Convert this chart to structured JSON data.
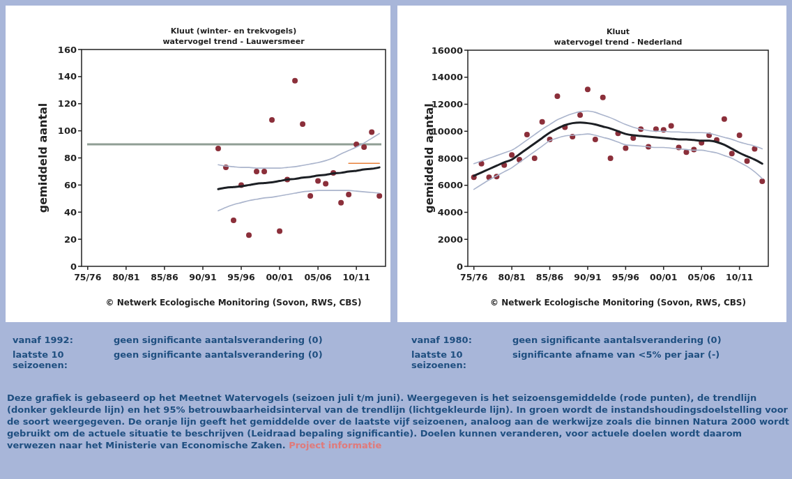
{
  "chart_data": [
    {
      "type": "scatter",
      "title": "Kluut (winter- en trekvogels)",
      "subtitle": "watervogel trend - Lauwersmeer",
      "ylabel": "gemiddeld aantal",
      "categories": [
        "75/76",
        null,
        null,
        null,
        null,
        "80/81",
        null,
        null,
        null,
        null,
        "85/86",
        null,
        null,
        null,
        null,
        "90/91",
        null,
        null,
        null,
        null,
        "95/96",
        null,
        null,
        null,
        null,
        "00/01",
        null,
        null,
        null,
        null,
        "05/06",
        null,
        null,
        null,
        null,
        "10/11",
        null,
        null,
        null
      ],
      "ylim": [
        0,
        160
      ],
      "yticks": [
        0,
        20,
        40,
        60,
        80,
        100,
        120,
        140,
        160
      ],
      "ref_lines": [
        {
          "axis": "y",
          "value": 90,
          "color": "#8f9e94"
        }
      ],
      "series": [
        {
          "type": "scatter",
          "marker": "circle",
          "color": "#8b2f3a",
          "values": [
            null,
            null,
            null,
            null,
            null,
            null,
            null,
            null,
            null,
            null,
            null,
            null,
            null,
            null,
            null,
            null,
            null,
            87,
            73,
            34,
            60,
            23,
            70,
            70,
            108,
            26,
            64,
            137,
            105,
            52,
            63,
            61,
            69,
            47,
            53,
            90,
            88,
            99,
            52
          ]
        },
        {
          "type": "line",
          "color": "#aab4cc",
          "values": [
            null,
            null,
            null,
            null,
            null,
            null,
            null,
            null,
            null,
            null,
            null,
            null,
            null,
            null,
            null,
            null,
            null,
            75,
            74,
            73.5,
            73,
            73,
            72.5,
            72.5,
            72.5,
            72.5,
            73,
            73.5,
            74.5,
            75.5,
            76.5,
            78,
            80,
            83,
            85.5,
            88,
            91,
            94.5,
            98
          ]
        },
        {
          "type": "line",
          "color": "#aab4cc",
          "values": [
            null,
            null,
            null,
            null,
            null,
            null,
            null,
            null,
            null,
            null,
            null,
            null,
            null,
            null,
            null,
            null,
            null,
            41,
            43.5,
            45.5,
            47,
            48.5,
            49.5,
            50.5,
            51,
            52,
            53,
            54,
            55,
            55.5,
            56,
            56,
            56,
            56,
            56,
            55.5,
            55,
            54.5,
            54
          ]
        },
        {
          "type": "line",
          "color": "#1c1f24",
          "values": [
            null,
            null,
            null,
            null,
            null,
            null,
            null,
            null,
            null,
            null,
            null,
            null,
            null,
            null,
            null,
            null,
            null,
            57,
            58,
            58.5,
            59,
            60,
            61,
            61.5,
            62,
            63,
            64,
            64.5,
            65.5,
            66,
            67,
            67.5,
            68.5,
            69,
            70,
            70.5,
            71.5,
            72,
            73
          ]
        },
        {
          "type": "line",
          "color": "#e8803a",
          "values": [
            null,
            null,
            null,
            null,
            null,
            null,
            null,
            null,
            null,
            null,
            null,
            null,
            null,
            null,
            null,
            null,
            null,
            null,
            null,
            null,
            null,
            null,
            null,
            null,
            null,
            null,
            null,
            null,
            null,
            null,
            null,
            null,
            null,
            null,
            76,
            76,
            76,
            76,
            76
          ]
        }
      ],
      "annotations": [
        "© Netwerk Ecologische Monitoring (Sovon, RWS, CBS)",
        "vanaf 1992:",
        "geen significante aantalsverandering (0)",
        "laatste 10 seizoenen:",
        "geen significante aantalsverandering (0)"
      ]
    },
    {
      "type": "scatter",
      "title": "Kluut",
      "subtitle": "watervogel trend - Nederland",
      "ylabel": "gemiddeld aantal",
      "categories": [
        "75/76",
        null,
        null,
        null,
        null,
        "80/81",
        null,
        null,
        null,
        null,
        "85/86",
        null,
        null,
        null,
        null,
        "90/91",
        null,
        null,
        null,
        null,
        "95/96",
        null,
        null,
        null,
        null,
        "00/01",
        null,
        null,
        null,
        null,
        "05/06",
        null,
        null,
        null,
        null,
        "10/11",
        null,
        null,
        null
      ],
      "ylim": [
        0,
        16000
      ],
      "yticks": [
        0,
        2000,
        4000,
        6000,
        8000,
        10000,
        12000,
        14000,
        16000
      ],
      "series": [
        {
          "type": "scatter",
          "marker": "circle",
          "color": "#8b2f3a",
          "values": [
            6600,
            7600,
            6600,
            6650,
            7500,
            8250,
            7900,
            9750,
            8000,
            10700,
            9400,
            12600,
            10300,
            9600,
            11200,
            13100,
            9400,
            12500,
            8000,
            9850,
            8750,
            9500,
            10150,
            8850,
            10150,
            10100,
            10400,
            8800,
            8450,
            8650,
            9150,
            9700,
            9350,
            10900,
            8350,
            9700,
            7800,
            8700,
            6300
          ]
        },
        {
          "type": "line",
          "color": "#aab4cc",
          "values": [
            7600,
            7800,
            8000,
            8200,
            8400,
            8600,
            8950,
            9350,
            9750,
            10150,
            10500,
            10850,
            11100,
            11300,
            11450,
            11500,
            11400,
            11200,
            11000,
            10750,
            10500,
            10300,
            10150,
            10050,
            10000,
            10000,
            9950,
            9950,
            9900,
            9900,
            9900,
            9850,
            9700,
            9550,
            9400,
            9200,
            9050,
            8900,
            8700
          ]
        },
        {
          "type": "line",
          "color": "#aab4cc",
          "values": [
            5700,
            6050,
            6400,
            6700,
            7000,
            7300,
            7700,
            8100,
            8500,
            8900,
            9300,
            9500,
            9650,
            9700,
            9750,
            9800,
            9700,
            9550,
            9400,
            9200,
            9000,
            8950,
            8900,
            8850,
            8800,
            8800,
            8750,
            8700,
            8650,
            8600,
            8600,
            8500,
            8400,
            8200,
            8000,
            7700,
            7400,
            7000,
            6500
          ]
        },
        {
          "type": "line",
          "color": "#1c1f24",
          "values": [
            6700,
            6950,
            7200,
            7450,
            7700,
            7900,
            8300,
            8700,
            9100,
            9500,
            9900,
            10200,
            10450,
            10600,
            10650,
            10600,
            10500,
            10350,
            10200,
            10000,
            9800,
            9700,
            9650,
            9600,
            9550,
            9500,
            9450,
            9400,
            9400,
            9350,
            9300,
            9300,
            9200,
            9000,
            8700,
            8400,
            8150,
            7900,
            7600
          ]
        }
      ],
      "annotations": [
        "© Netwerk Ecologische Monitoring (Sovon, RWS, CBS)",
        "vanaf 1980:",
        "geen significante aantalsverandering (0)",
        "laatste 10 seizoenen:",
        "significante afname van <5% per jaar (-)"
      ]
    },
    {
      "type": "other",
      "annotations": [
        "Deze grafiek is gebaseerd op het Meetnet Watervogels (seizoen juli t/m juni). Weergegeven is het seizoensgemiddelde (rode punten), de trendlijn (donker gekleurde lijn) en het 95% betrouwbaarheidsinterval van de trendlijn (lichtgekleurde lijn). In groen wordt de instandshoudingsdoelstelling voor de soort weergegeven. De oranje lijn geeft het gemiddelde over de laatste vijf seizoenen, analoog aan de werkwijze zoals die binnen Natura 2000 wordt gebruikt om de actuele situatie te beschrijven (Leidraad bepaling significantie). Doelen kunnen veranderen, voor actuele doelen wordt daarom verwezen naar het Ministerie van Economische Zaken.",
        "Project informatie"
      ]
    }
  ]
}
